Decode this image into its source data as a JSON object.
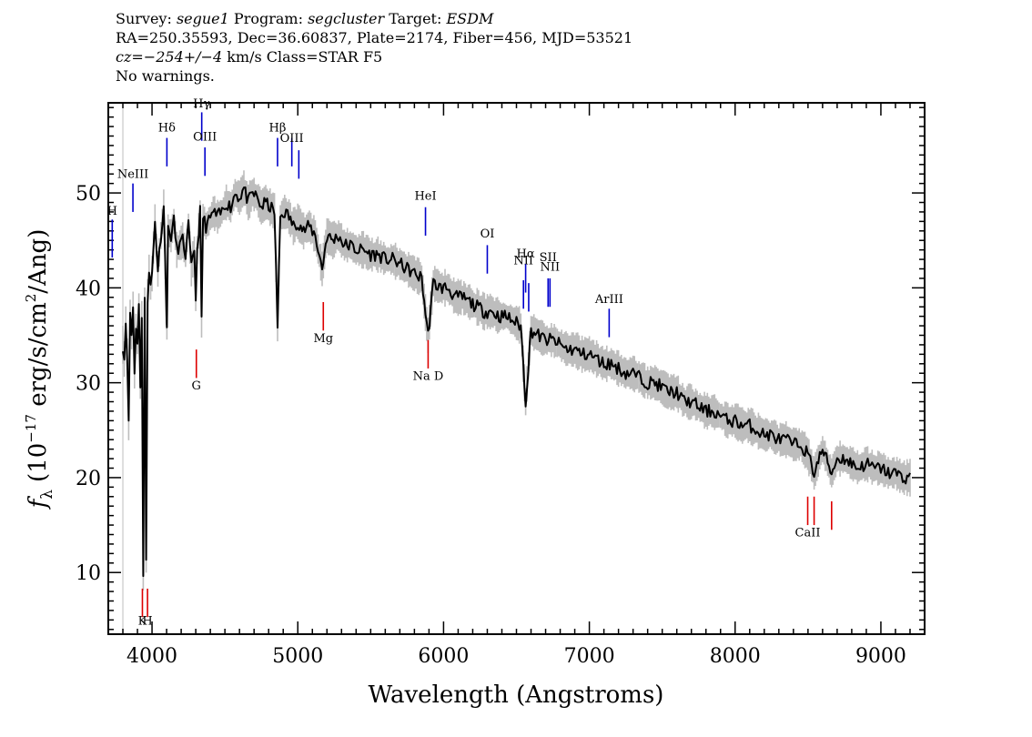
{
  "header": {
    "line1": {
      "survey_label": "Survey:",
      "survey": "segue1",
      "program_label": "Program:",
      "program": "segcluster",
      "target_label": "Target:",
      "target": "ESDM"
    },
    "line2": "RA=250.35593, Dec=36.60837, Plate=2174, Fiber=456, MJD=53521",
    "line3": {
      "cz": "cz=−254+/−4",
      "rest": " km/s Class=STAR F5"
    },
    "line4": "No warnings."
  },
  "chart_data": {
    "type": "line",
    "xlabel": "Wavelength (Angstroms)",
    "ylabel_prefix": "f",
    "ylabel_sub": "λ",
    "ylabel_main": "(10",
    "ylabel_sup": "−17",
    "ylabel_end": " erg/s/cm",
    "ylabel_sup2": "2",
    "ylabel_tail": "/Ang)",
    "xlim": [
      3700,
      9300
    ],
    "ylim": [
      3.5,
      59.5
    ],
    "xticks": [
      4000,
      5000,
      6000,
      7000,
      8000,
      9000
    ],
    "yticks": [
      10,
      20,
      30,
      40,
      50
    ],
    "colors": {
      "flux": "#000000",
      "error_band": "#bdbdbd",
      "emission": "#0000cc",
      "absorption": "#dd0000"
    },
    "series": [
      {
        "role": "flux",
        "x": [
          3800,
          3810,
          3820,
          3830,
          3840,
          3850,
          3860,
          3870,
          3880,
          3890,
          3900,
          3910,
          3920,
          3930,
          3940,
          3950,
          3960,
          3970,
          3980,
          3990,
          4000,
          4020,
          4040,
          4060,
          4080,
          4100,
          4102,
          4110,
          4130,
          4150,
          4170,
          4190,
          4210,
          4230,
          4250,
          4270,
          4290,
          4300,
          4310,
          4330,
          4340,
          4350,
          4370,
          4390,
          4420,
          4450,
          4480,
          4510,
          4540,
          4570,
          4600,
          4630,
          4660,
          4690,
          4720,
          4750,
          4780,
          4810,
          4840,
          4861,
          4880,
          4910,
          4940,
          4970,
          5000,
          5040,
          5080,
          5120,
          5167,
          5200,
          5240,
          5280,
          5320,
          5360,
          5400,
          5450,
          5500,
          5550,
          5600,
          5650,
          5700,
          5750,
          5800,
          5850,
          5893,
          5930,
          5980,
          6030,
          6080,
          6130,
          6180,
          6230,
          6280,
          6330,
          6380,
          6430,
          6480,
          6530,
          6563,
          6600,
          6650,
          6700,
          6750,
          6800,
          6850,
          6900,
          6950,
          7000,
          7050,
          7100,
          7150,
          7200,
          7250,
          7300,
          7350,
          7400,
          7450,
          7500,
          7550,
          7600,
          7650,
          7700,
          7750,
          7800,
          7850,
          7900,
          7950,
          8000,
          8050,
          8100,
          8150,
          8200,
          8250,
          8300,
          8350,
          8400,
          8450,
          8498,
          8542,
          8600,
          8662,
          8700,
          8750,
          8800,
          8850,
          8900,
          8950,
          9000,
          9050,
          9100,
          9150,
          9200
        ],
        "y": [
          34.0,
          32.5,
          36.5,
          33.0,
          25.5,
          37.5,
          35.0,
          38.0,
          31.0,
          36.0,
          34.5,
          38.0,
          30.0,
          37.0,
          9.5,
          38.5,
          11.5,
          39.0,
          42.0,
          40.0,
          41.5,
          47.0,
          42.0,
          45.5,
          48.5,
          37.0,
          36.0,
          46.0,
          45.5,
          47.0,
          44.0,
          44.5,
          45.0,
          43.5,
          46.5,
          42.0,
          44.0,
          39.0,
          44.0,
          48.0,
          36.5,
          47.5,
          46.5,
          47.0,
          48.0,
          47.5,
          48.0,
          49.0,
          48.5,
          50.0,
          49.5,
          50.5,
          49.0,
          50.0,
          49.5,
          48.5,
          49.0,
          48.5,
          48.0,
          36.0,
          47.5,
          48.0,
          47.5,
          46.5,
          47.0,
          46.0,
          46.5,
          45.5,
          42.0,
          45.5,
          45.0,
          45.5,
          44.5,
          44.5,
          44.0,
          44.0,
          43.5,
          43.5,
          43.0,
          43.0,
          42.5,
          42.0,
          41.5,
          41.0,
          35.0,
          40.5,
          40.0,
          40.0,
          39.0,
          39.0,
          38.5,
          38.0,
          37.5,
          37.5,
          37.0,
          37.0,
          36.5,
          36.0,
          28.0,
          35.5,
          35.0,
          34.5,
          34.5,
          34.0,
          33.5,
          33.5,
          33.0,
          33.0,
          32.5,
          32.0,
          32.0,
          31.5,
          31.0,
          31.0,
          30.5,
          30.0,
          30.0,
          29.5,
          29.0,
          29.0,
          28.0,
          28.0,
          27.5,
          27.0,
          27.0,
          26.5,
          26.0,
          26.0,
          25.5,
          25.5,
          25.0,
          24.5,
          24.5,
          24.0,
          24.0,
          23.5,
          23.5,
          22.5,
          20.5,
          23.0,
          20.5,
          22.0,
          22.0,
          21.5,
          21.0,
          21.5,
          21.0,
          21.0,
          20.5,
          20.5,
          20.0,
          20.0
        ]
      }
    ],
    "line_labels": [
      {
        "label": "H",
        "x": 3727,
        "kind": "emission",
        "bottom": 43.2,
        "top": 47.2,
        "text_y": 47.7
      },
      {
        "label": "NeIII",
        "x": 3869,
        "kind": "emission",
        "bottom": 48.0,
        "top": 51.0,
        "text_y": 51.6
      },
      {
        "label": "Hδ",
        "x": 4102,
        "kind": "emission",
        "bottom": 52.8,
        "top": 55.8,
        "text_y": 56.5
      },
      {
        "label": "Hγ",
        "x": 4341,
        "kind": "emission",
        "bottom": 55.5,
        "top": 58.5,
        "text_y": 59.0
      },
      {
        "label": "OIII",
        "x": 4363,
        "kind": "emission",
        "bottom": 51.8,
        "top": 54.8,
        "text_y": 55.5
      },
      {
        "label": "Hβ",
        "x": 4861,
        "kind": "emission",
        "bottom": 52.8,
        "top": 55.8,
        "text_y": 56.5
      },
      {
        "label": "OIII",
        "x": 4959,
        "kind": "emission",
        "bottom": 52.8,
        "top": 55.8,
        "text_y": 55.4
      },
      {
        "label": "",
        "x": 5007,
        "kind": "emission",
        "bottom": 51.5,
        "top": 54.5,
        "text_y": 0
      },
      {
        "label": "HeI",
        "x": 5876,
        "kind": "emission",
        "bottom": 45.5,
        "top": 48.5,
        "text_y": 49.3
      },
      {
        "label": "OI",
        "x": 6300,
        "kind": "emission",
        "bottom": 41.5,
        "top": 44.5,
        "text_y": 45.3
      },
      {
        "label": "NII",
        "x": 6548,
        "kind": "emission",
        "bottom": 37.8,
        "top": 40.8,
        "text_y": 42.5
      },
      {
        "label": "Hα",
        "x": 6563,
        "kind": "emission",
        "bottom": 39.5,
        "top": 42.5,
        "text_y": 43.2
      },
      {
        "label": "",
        "x": 6584,
        "kind": "emission",
        "bottom": 37.5,
        "top": 40.5,
        "text_y": 0
      },
      {
        "label": "SII",
        "x": 6717,
        "kind": "emission",
        "bottom": 38.0,
        "top": 41.0,
        "text_y": 42.8
      },
      {
        "label": "NII",
        "x": 6730,
        "kind": "emission",
        "bottom": 38.0,
        "top": 41.0,
        "text_y": 41.8
      },
      {
        "label": "ArIII",
        "x": 7136,
        "kind": "emission",
        "bottom": 34.8,
        "top": 37.8,
        "text_y": 38.4
      },
      {
        "label": "G",
        "x": 4304,
        "kind": "absorption",
        "bottom": 30.5,
        "top": 33.5,
        "text_y": 29.3
      },
      {
        "label": "Mg",
        "x": 5175,
        "kind": "absorption",
        "bottom": 35.5,
        "top": 38.5,
        "text_y": 34.3
      },
      {
        "label": "Na D",
        "x": 5894,
        "kind": "absorption",
        "bottom": 31.5,
        "top": 34.5,
        "text_y": 30.3
      },
      {
        "label": "K",
        "x": 3934,
        "kind": "absorption",
        "bottom": 5.3,
        "top": 8.3,
        "text_y": 4.5
      },
      {
        "label": "H",
        "x": 3969,
        "kind": "absorption",
        "bottom": 5.3,
        "top": 8.3,
        "text_y": 4.5
      },
      {
        "label": "CaII",
        "x": 8498,
        "kind": "absorption",
        "bottom": 15.0,
        "top": 18.0,
        "text_y": 13.8
      },
      {
        "label": "",
        "x": 8542,
        "kind": "absorption",
        "bottom": 15.0,
        "top": 18.0,
        "text_y": 0
      },
      {
        "label": "",
        "x": 8662,
        "kind": "absorption",
        "bottom": 14.5,
        "top": 17.5,
        "text_y": 0
      }
    ]
  }
}
